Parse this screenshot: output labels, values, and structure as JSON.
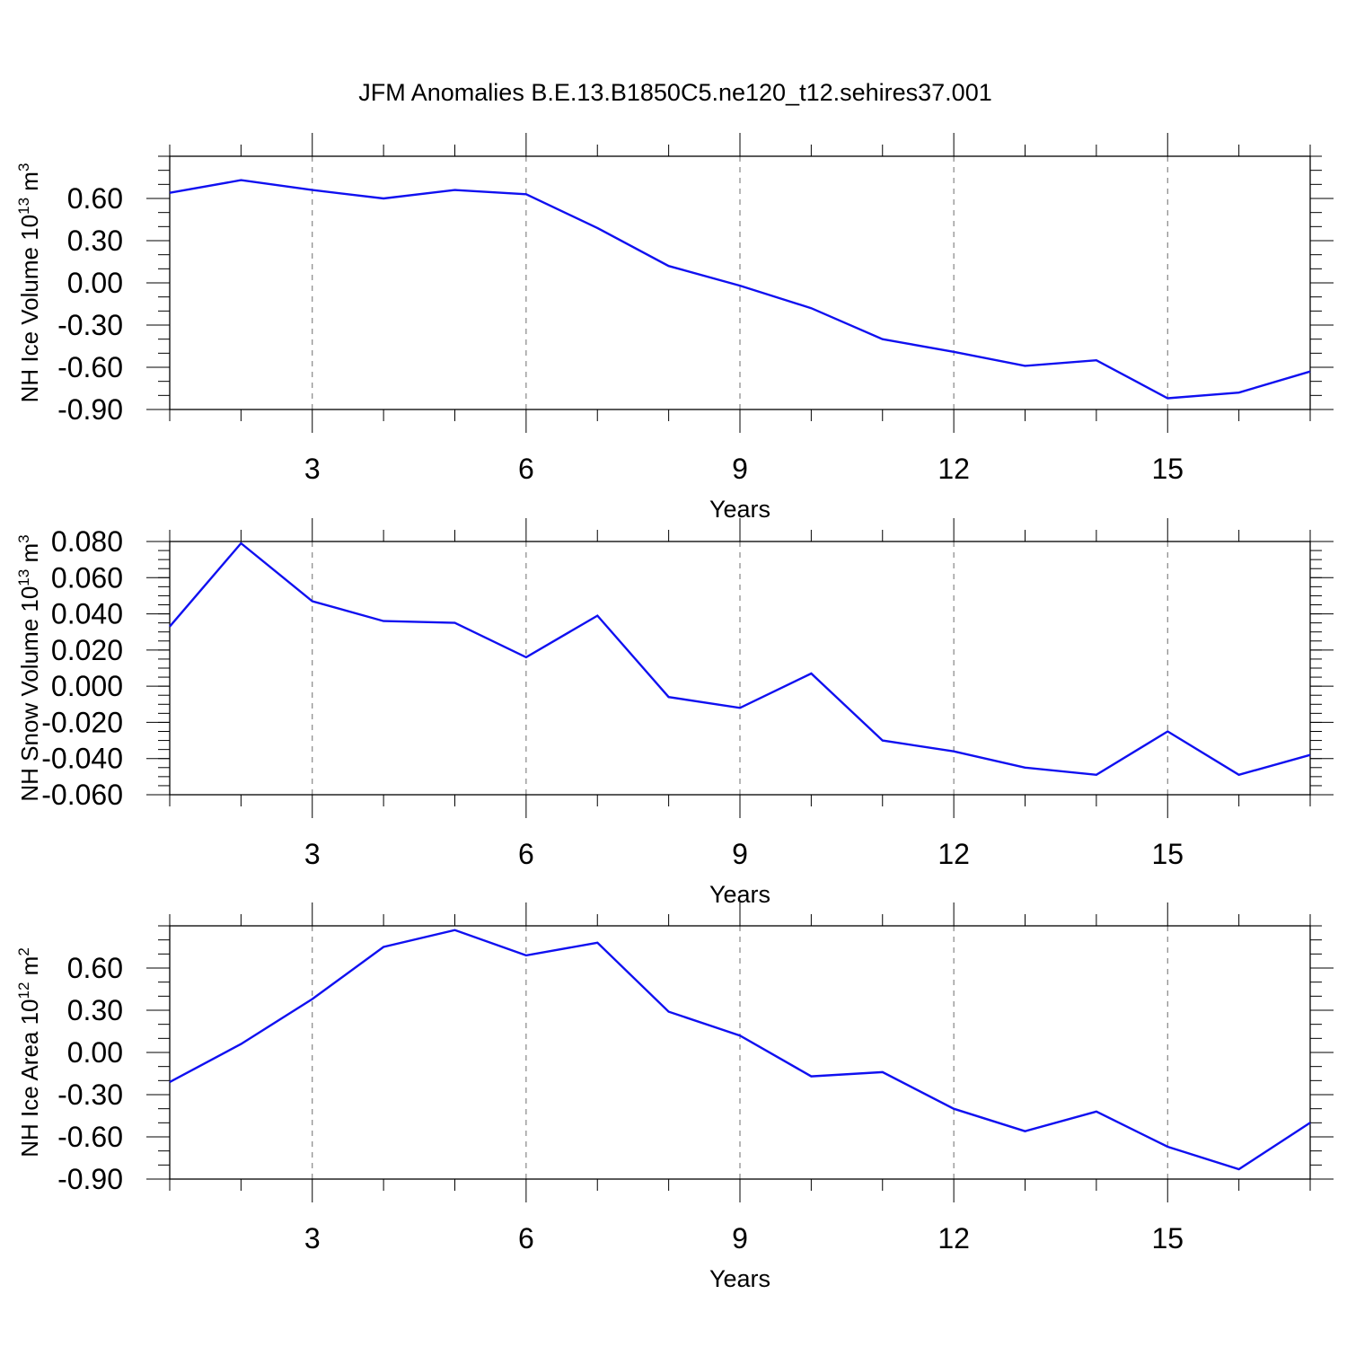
{
  "title": "JFM Anomalies B.E.13.B1850C5.ne120_t12.sehires37.001",
  "colors": {
    "line": "#1010f0",
    "axis": "#000000",
    "grid": "#6e6e6e",
    "background": "#ffffff"
  },
  "chart_data": [
    {
      "type": "line",
      "title": "JFM Anomalies B.E.13.B1850C5.ne120_t12.sehires37.001",
      "ylabel": {
        "prefix": "NH Ice Volume 10",
        "exp": "13",
        "unit": " m",
        "unit_exp": "3"
      },
      "xlabel": "Years",
      "xlim": [
        1,
        17
      ],
      "ylim": [
        -0.9,
        0.9
      ],
      "xticks": [
        3,
        6,
        9,
        12,
        15
      ],
      "yticks": [
        -0.9,
        -0.6,
        -0.3,
        0.0,
        0.3,
        0.6
      ],
      "ytick_labels": [
        "-0.90",
        "-0.60",
        "-0.30",
        "0.00",
        "0.30",
        "0.60"
      ],
      "ytick_minor": 0.1,
      "grid": "vertical dashed at major x ticks",
      "x": [
        1,
        2,
        3,
        4,
        5,
        6,
        7,
        8,
        9,
        10,
        11,
        12,
        13,
        14,
        15,
        16,
        17
      ],
      "y": [
        0.64,
        0.73,
        0.66,
        0.6,
        0.66,
        0.63,
        0.39,
        0.12,
        -0.02,
        -0.18,
        -0.4,
        -0.49,
        -0.59,
        -0.55,
        -0.82,
        -0.78,
        -0.63
      ]
    },
    {
      "type": "line",
      "ylabel": {
        "prefix": "NH Snow Volume 10",
        "exp": "13",
        "unit": " m",
        "unit_exp": "3"
      },
      "xlabel": "Years",
      "xlim": [
        1,
        17
      ],
      "ylim": [
        -0.06,
        0.08
      ],
      "xticks": [
        3,
        6,
        9,
        12,
        15
      ],
      "yticks": [
        -0.06,
        -0.04,
        -0.02,
        0.0,
        0.02,
        0.04,
        0.06,
        0.08
      ],
      "ytick_labels": [
        "-0.060",
        "-0.040",
        "-0.020",
        "0.000",
        "0.020",
        "0.040",
        "0.060",
        "0.080"
      ],
      "ytick_minor": 0.005,
      "grid": "vertical dashed at major x ticks",
      "x": [
        1,
        2,
        3,
        4,
        5,
        6,
        7,
        8,
        9,
        10,
        11,
        12,
        13,
        14,
        15,
        16,
        17
      ],
      "y": [
        0.033,
        0.079,
        0.047,
        0.036,
        0.035,
        0.016,
        0.039,
        -0.006,
        -0.012,
        0.007,
        -0.03,
        -0.036,
        -0.045,
        -0.049,
        -0.025,
        -0.049,
        -0.038
      ]
    },
    {
      "type": "line",
      "ylabel": {
        "prefix": "NH Ice Area 10",
        "exp": "12",
        "unit": " m",
        "unit_exp": "2"
      },
      "xlabel": "Years",
      "xlim": [
        1,
        17
      ],
      "ylim": [
        -0.9,
        0.9
      ],
      "xticks": [
        3,
        6,
        9,
        12,
        15
      ],
      "yticks": [
        -0.9,
        -0.6,
        -0.3,
        0.0,
        0.3,
        0.6
      ],
      "ytick_labels": [
        "-0.90",
        "-0.60",
        "-0.30",
        "0.00",
        "0.30",
        "0.60"
      ],
      "ytick_minor": 0.1,
      "grid": "vertical dashed at major x ticks",
      "x": [
        1,
        2,
        3,
        4,
        5,
        6,
        7,
        8,
        9,
        10,
        11,
        12,
        13,
        14,
        15,
        16,
        17
      ],
      "y": [
        -0.21,
        0.06,
        0.38,
        0.75,
        0.87,
        0.69,
        0.78,
        0.29,
        0.12,
        -0.17,
        -0.14,
        -0.4,
        -0.56,
        -0.42,
        -0.67,
        -0.83,
        -0.5
      ]
    }
  ]
}
